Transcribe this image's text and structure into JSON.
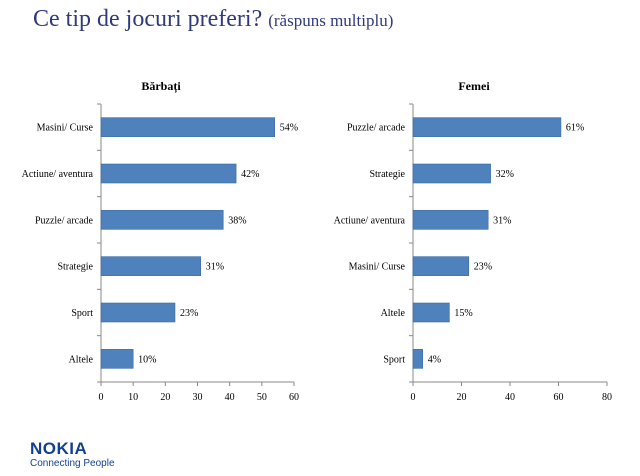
{
  "title": {
    "main": "Ce tip de jocuri preferi?",
    "sub": "(răspuns multiplu)"
  },
  "logo": {
    "brand": "NOKIA",
    "tagline": "Connecting People"
  },
  "colors": {
    "title": "#2E3A7C",
    "bar": "#4F81BD",
    "bar_border": "#3B6AA8",
    "logo": "#124191"
  },
  "chart_data": [
    {
      "type": "bar",
      "orientation": "horizontal",
      "title": "Bărbați",
      "categories": [
        "Masini/ Curse",
        "Actiune/ aventura",
        "Puzzle/ arcade",
        "Strategie",
        "Sport",
        "Altele"
      ],
      "values": [
        54,
        42,
        38,
        31,
        23,
        10
      ],
      "value_labels": [
        "54%",
        "42%",
        "38%",
        "31%",
        "23%",
        "10%"
      ],
      "xlim": [
        0,
        60
      ],
      "xticks": [
        0,
        10,
        20,
        30,
        40,
        50,
        60
      ],
      "grid": false,
      "legend": "none"
    },
    {
      "type": "bar",
      "orientation": "horizontal",
      "title": "Femei",
      "categories": [
        "Puzzle/ arcade",
        "Strategie",
        "Actiune/ aventura",
        "Masini/ Curse",
        "Altele",
        "Sport"
      ],
      "values": [
        61,
        32,
        31,
        23,
        15,
        4
      ],
      "value_labels": [
        "61%",
        "32%",
        "31%",
        "23%",
        "15%",
        "4%"
      ],
      "xlim": [
        0,
        80
      ],
      "xticks": [
        0,
        20,
        40,
        60,
        80
      ],
      "grid": false,
      "legend": "none"
    }
  ]
}
